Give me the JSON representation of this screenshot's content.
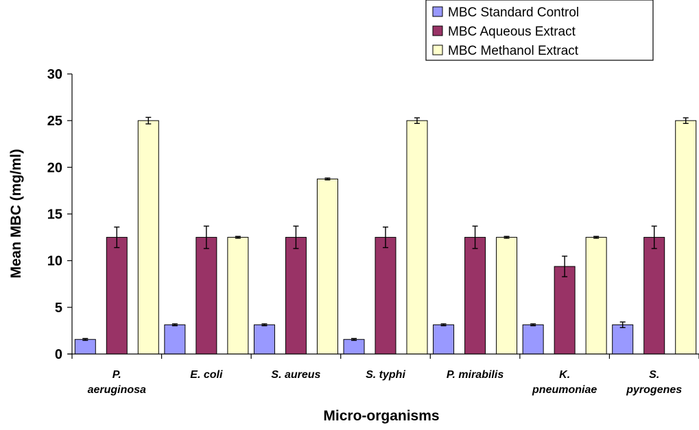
{
  "chart_data": {
    "type": "bar",
    "xlabel": "Micro-organisms",
    "ylabel": "Mean MBC (mg/ml)",
    "ylim": [
      0,
      30
    ],
    "yticks": [
      0,
      5,
      10,
      15,
      20,
      25,
      30
    ],
    "grid": false,
    "legend_position": "top-right",
    "categories": [
      [
        "P.",
        "aeruginosa"
      ],
      [
        "E. coli"
      ],
      [
        "S. aureus"
      ],
      [
        "S. typhi"
      ],
      [
        "P. mirabilis"
      ],
      [
        "K.",
        "pneumoniae"
      ],
      [
        "S.",
        "pyrogenes"
      ]
    ],
    "series": [
      {
        "name": "MBC Standard Control",
        "color": "#9999ff",
        "values": [
          1.56,
          3.13,
          3.13,
          1.56,
          3.13,
          3.13,
          3.13
        ],
        "errors": [
          0.1,
          0.1,
          0.1,
          0.1,
          0.1,
          0.1,
          0.3
        ]
      },
      {
        "name": "MBC Aqueous Extract",
        "color": "#993366",
        "values": [
          12.5,
          12.5,
          12.5,
          12.5,
          12.5,
          9.38,
          12.5
        ],
        "errors": [
          1.1,
          1.2,
          1.2,
          1.1,
          1.2,
          1.1,
          1.2
        ]
      },
      {
        "name": "MBC Methanol Extract",
        "color": "#ffffcc",
        "values": [
          25,
          12.5,
          18.75,
          25,
          12.5,
          12.5,
          25
        ],
        "errors": [
          0.35,
          0.1,
          0.1,
          0.3,
          0.1,
          0.1,
          0.3
        ]
      }
    ]
  }
}
